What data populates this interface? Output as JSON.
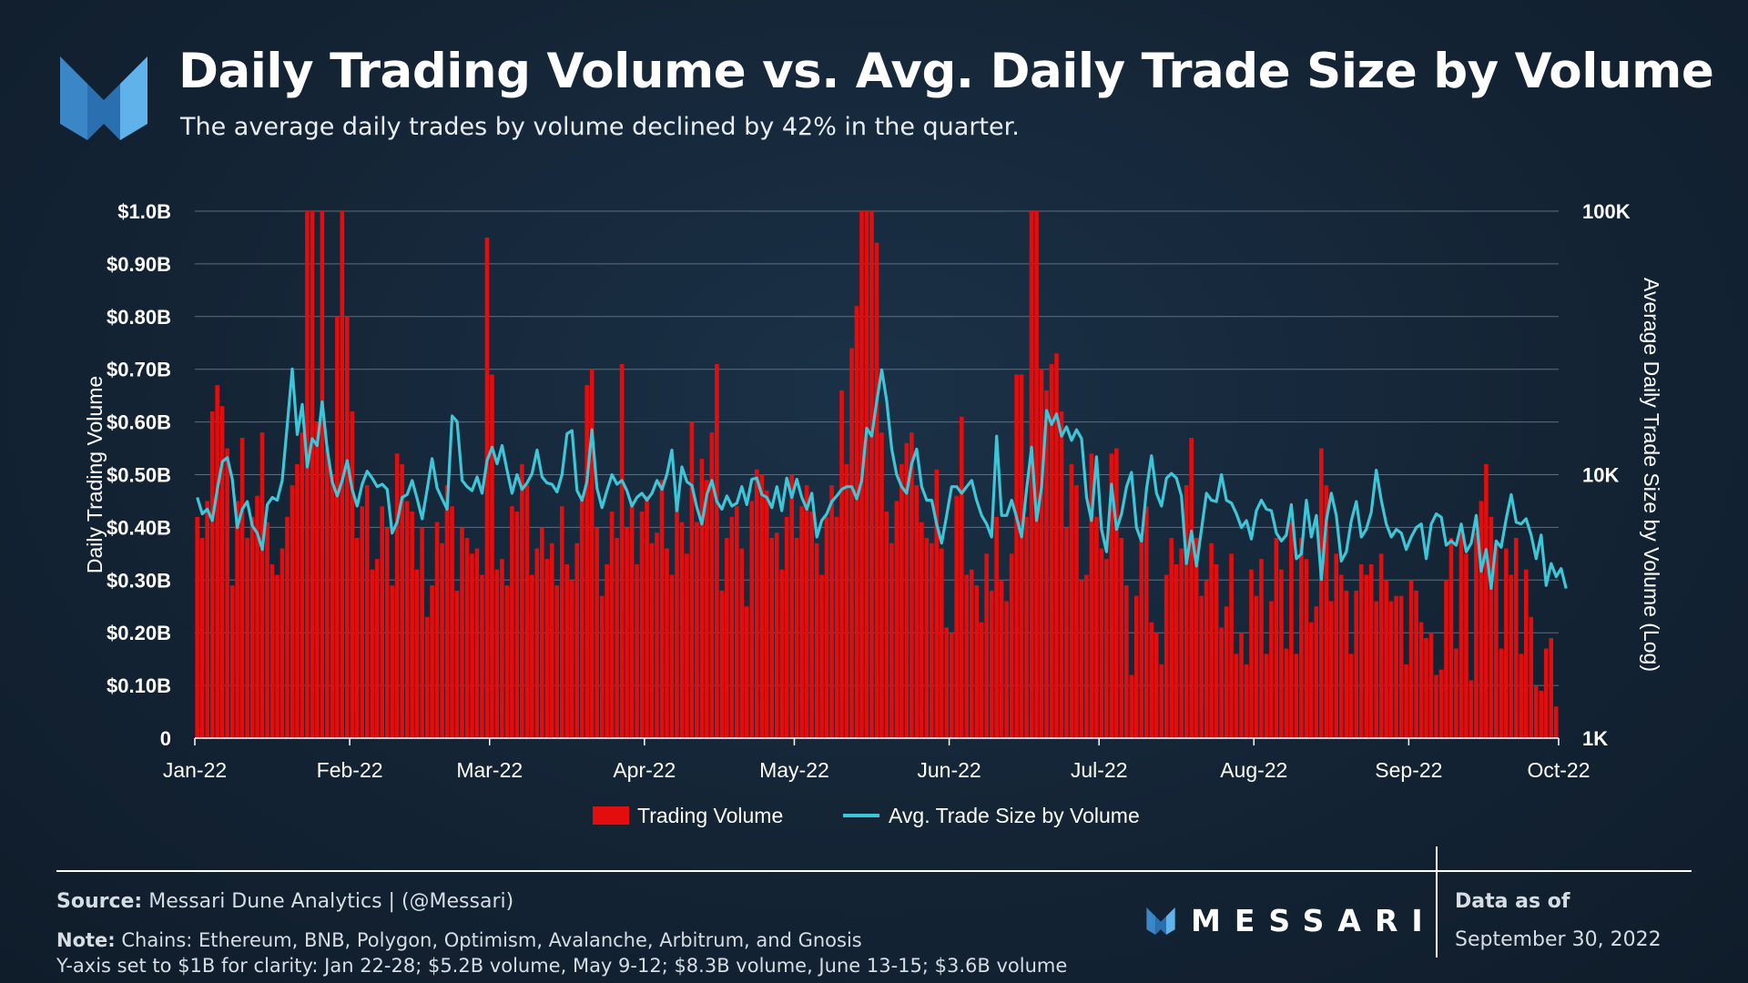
{
  "header": {
    "title": "Daily Trading Volume vs. Avg. Daily Trade Size by Volume",
    "subtitle": "The average daily trades by volume declined by 42% in the quarter."
  },
  "colors": {
    "bar": "#e30d0d",
    "line": "#3cc6d8",
    "grid": "#5e6e7e",
    "text": "#ffffff"
  },
  "chart_data": {
    "type": "bar",
    "title": "Daily Trading Volume vs. Avg. Daily Trade Size by Volume",
    "ylabel": "Daily Trading Volume",
    "y2label": "Average Daily Trade Size by Volume (Log)",
    "ylim": [
      0,
      1.0
    ],
    "y2lim": [
      1000,
      100000
    ],
    "y2scale": "log",
    "yticks": [
      "0",
      "$0.10B",
      "$0.20B",
      "$0.30B",
      "$0.40B",
      "$0.50B",
      "$0.60B",
      "$0.70B",
      "$0.80B",
      "$0.90B",
      "$1.0B"
    ],
    "y2ticks": [
      "1K",
      "10K",
      "100K"
    ],
    "xticks": [
      "Jan-22",
      "Feb-22",
      "Mar-22",
      "Apr-22",
      "May-22",
      "Jun-22",
      "Jul-22",
      "Aug-22",
      "Sep-22",
      "Oct-22"
    ],
    "legend": [
      "Trading Volume",
      "Avg. Trade Size by Volume"
    ],
    "legend_position": "bottom-center",
    "series": [
      {
        "name": "Trading Volume",
        "unit": "$B",
        "monthly_points": [
          [
            0.42,
            0.38,
            0.45,
            0.62,
            0.67,
            0.63,
            0.55,
            0.29,
            0.45,
            0.57,
            0.38,
            0.42,
            0.46,
            0.58,
            0.41,
            0.33,
            0.31,
            0.36,
            0.42,
            0.48,
            0.52,
            0.58,
            1.0,
            1.0,
            0.6,
            1.0,
            0.55,
            0.5,
            0.8,
            1.0,
            0.8
          ],
          [
            0.62,
            0.38,
            0.44,
            0.48,
            0.32,
            0.34,
            0.44,
            0.4,
            0.29,
            0.54,
            0.52,
            0.45,
            0.43,
            0.32,
            0.4,
            0.23,
            0.29,
            0.41,
            0.37,
            0.48,
            0.44,
            0.28,
            0.4,
            0.38,
            0.35,
            0.36,
            0.31,
            0.95
          ],
          [
            0.69,
            0.32,
            0.34,
            0.29,
            0.44,
            0.43,
            0.52,
            0.48,
            0.31,
            0.36,
            0.4,
            0.34,
            0.37,
            0.29,
            0.44,
            0.33,
            0.3,
            0.37,
            0.46,
            0.67,
            0.7,
            0.4,
            0.27,
            0.33,
            0.43,
            0.38,
            0.71,
            0.4,
            0.45,
            0.33,
            0.43
          ],
          [
            0.46,
            0.37,
            0.39,
            0.49,
            0.36,
            0.31,
            0.44,
            0.41,
            0.35,
            0.6,
            0.41,
            0.53,
            0.49,
            0.58,
            0.71,
            0.28,
            0.38,
            0.42,
            0.44,
            0.36,
            0.25,
            0.45,
            0.51,
            0.5,
            0.47,
            0.38,
            0.39,
            0.32,
            0.42,
            0.5
          ],
          [
            0.38,
            0.44,
            0.48,
            0.43,
            0.37,
            0.31,
            0.42,
            0.48,
            0.42,
            0.66,
            0.52,
            0.74,
            0.82,
            1.0,
            1.0,
            1.0,
            0.94,
            0.58,
            0.43,
            0.37,
            0.45,
            0.52,
            0.56,
            0.58,
            0.48,
            0.41,
            0.38,
            0.37,
            0.51,
            0.36,
            0.21
          ],
          [
            0.2,
            0.46,
            0.61,
            0.31,
            0.32,
            0.29,
            0.22,
            0.35,
            0.28,
            0.42,
            0.3,
            0.26,
            0.35,
            0.69,
            0.69,
            0.42,
            1.0,
            1.0,
            0.7,
            0.66,
            0.71,
            0.73,
            0.62,
            0.4,
            0.52,
            0.48,
            0.3,
            0.31,
            0.54,
            0.42
          ],
          [
            0.36,
            0.34,
            0.54,
            0.55,
            0.38,
            0.29,
            0.12,
            0.27,
            0.38,
            0.44,
            0.22,
            0.2,
            0.14,
            0.31,
            0.38,
            0.33,
            0.36,
            0.48,
            0.57,
            0.38,
            0.27,
            0.3,
            0.37,
            0.33,
            0.21,
            0.25,
            0.35,
            0.16,
            0.2,
            0.14,
            0.32
          ],
          [
            0.27,
            0.34,
            0.16,
            0.26,
            0.38,
            0.32,
            0.17,
            0.41,
            0.16,
            0.38,
            0.34,
            0.22,
            0.25,
            0.55,
            0.48,
            0.26,
            0.35,
            0.31,
            0.28,
            0.16,
            0.28,
            0.33,
            0.31,
            0.33,
            0.26,
            0.35,
            0.3,
            0.26,
            0.27,
            0.27,
            0.14
          ],
          [
            0.3,
            0.28,
            0.22,
            0.19,
            0.2,
            0.12,
            0.13,
            0.3,
            0.38,
            0.17,
            0.39,
            0.35,
            0.11,
            0.39,
            0.45,
            0.52,
            0.42,
            0.37,
            0.17,
            0.36,
            0.31,
            0.38,
            0.16,
            0.32,
            0.23,
            0.1,
            0.09,
            0.17,
            0.19,
            0.06
          ]
        ]
      },
      {
        "name": "Avg. Trade Size by Volume",
        "unit": "USD",
        "monthly_points": [
          [
            8200,
            7100,
            7400,
            6700,
            8800,
            11200,
            11600,
            9600,
            6300,
            7400,
            7900,
            6400,
            6000,
            5200,
            7700,
            8200,
            8000,
            9500,
            15400,
            25200,
            14200,
            18500,
            10700,
            13700,
            12900,
            18900,
            12500,
            9400,
            8300,
            9500,
            11300
          ],
          [
            8800,
            7600,
            9200,
            10300,
            9700,
            9000,
            9200,
            8800,
            6000,
            6600,
            8200,
            8400,
            9500,
            8100,
            6800,
            8800,
            11500,
            8900,
            8100,
            7400,
            16700,
            15900,
            9500,
            9000,
            8700,
            9800,
            8500,
            11300
          ],
          [
            12700,
            11000,
            12900,
            10400,
            8500,
            10000,
            8800,
            9300,
            10100,
            12400,
            9800,
            9300,
            9200,
            8600,
            10000,
            14300,
            14700,
            8700,
            8000,
            9400,
            14800,
            8900,
            7500,
            8700,
            10000,
            9200,
            9500,
            8700,
            7600,
            8200,
            8500
          ],
          [
            8000,
            8500,
            9500,
            8800,
            10000,
            12400,
            7300,
            10700,
            9400,
            9100,
            7500,
            6500,
            8400,
            9500,
            7900,
            7400,
            8300,
            7600,
            7800,
            9000,
            7700,
            9600,
            9700,
            8400,
            8200,
            7500,
            9000,
            7300,
            9700,
            8200,
            9600
          ],
          [
            8200,
            7400,
            8500,
            5800,
            6700,
            7100,
            7900,
            8300,
            8800,
            9000,
            9000,
            8100,
            9500,
            15000,
            14000,
            19000,
            25000,
            19000,
            12500,
            10000,
            9000,
            8500,
            11000,
            12500,
            9000,
            8000,
            8000,
            6500,
            5500,
            7000,
            9000
          ],
          [
            9000,
            8500,
            9000,
            9500,
            8000,
            7000,
            6500,
            5800,
            14000,
            7000,
            7000,
            8000,
            6900,
            5800,
            8800,
            12700,
            6700,
            9000,
            17500,
            15500,
            17000,
            14000,
            15200,
            13500,
            14800,
            13700,
            8200,
            6700,
            11700,
            6200,
            5100
          ],
          [
            9200,
            6200,
            7100,
            9000,
            10200,
            6300,
            5600,
            8800,
            11800,
            8500,
            7600,
            9700,
            10100,
            9700,
            8300,
            4600,
            6100,
            4500,
            6200,
            8500,
            8000,
            7900,
            10000,
            8000,
            7800,
            7100,
            6300,
            6700,
            5700,
            7300,
            8000
          ],
          [
            7400,
            7300,
            6000,
            5600,
            5900,
            7700,
            4800,
            5000,
            8000,
            5800,
            7000,
            4000,
            6700,
            8500,
            7000,
            4700,
            5100,
            6700,
            7900,
            5800,
            6200,
            7200,
            10400,
            8000,
            6500,
            5800,
            6200,
            6000,
            5200,
            5800,
            6300
          ],
          [
            6500,
            4800,
            6500,
            7100,
            6900,
            5400,
            5600,
            5400,
            6500,
            5100,
            5500,
            7000,
            4300,
            5200,
            3700,
            5600,
            5300,
            6800,
            8400,
            6600,
            6500,
            6800,
            5900,
            4800,
            5900,
            3800,
            4600,
            4100,
            4400,
            3700
          ]
        ]
      }
    ]
  },
  "footer": {
    "source_label": "Source:",
    "source_text": " Messari Dune Analytics | (@Messari)",
    "note_label": "Note:",
    "note_text": " Chains: Ethereum, BNB, Polygon, Optimism, Avalanche, Arbitrum, and Gnosis",
    "note_line2": "Y-axis set to $1B for clarity: Jan 22-28; $5.2B volume, May 9-12; $8.3B volume, June 13-15; $3.6B volume",
    "brand": "MESSARI",
    "asof_label": "Data as of",
    "asof_date": "September 30, 2022"
  }
}
